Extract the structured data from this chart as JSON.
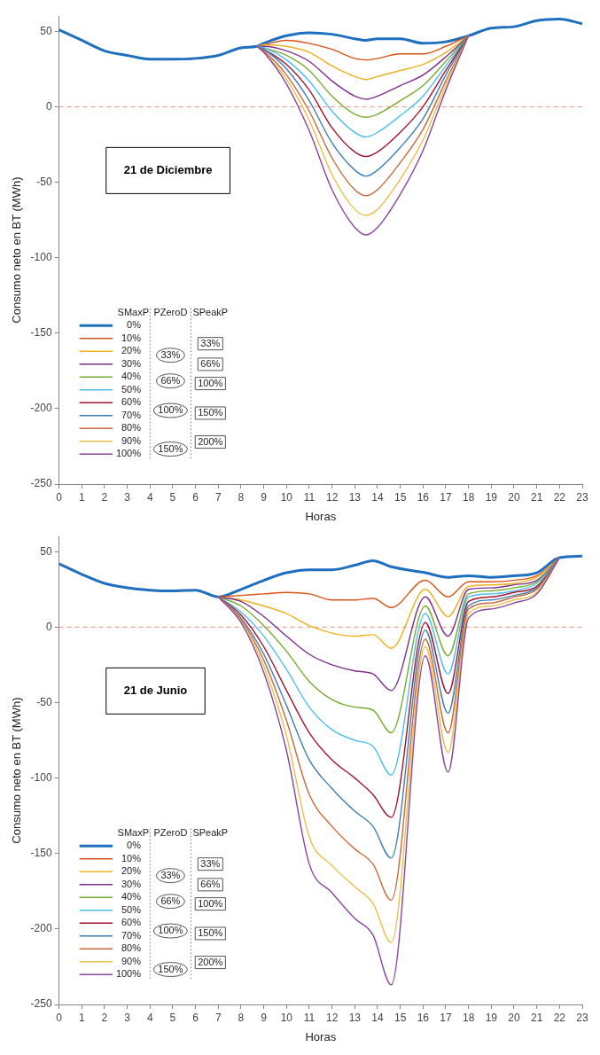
{
  "chart_data": [
    {
      "type": "line",
      "xlabel": "Horas",
      "ylabel": "Consumo neto en BT (MWh)",
      "legend": "bottom left",
      "legend_title": "SMaxP",
      "marker": "none",
      "annotations": [
        "21 de Diciembre",
        "PZeroD",
        "33%",
        "66%",
        "100%",
        "150%",
        "SPeakP",
        "33%",
        "66%",
        "100%",
        "150%",
        "200%"
      ],
      "ref_lines": [
        {
          "axis": "y",
          "value": 0,
          "color": "#e8907a",
          "line_style": "dashed"
        }
      ],
      "xlim": [
        0,
        23
      ],
      "xticks": [
        0,
        1,
        2,
        3,
        4,
        5,
        6,
        7,
        8,
        9,
        10,
        11,
        12,
        13,
        14,
        15,
        16,
        17,
        18,
        19,
        20,
        21,
        22,
        23
      ],
      "ylim": [
        -250,
        60
      ],
      "yticks": [
        -250,
        -200,
        -150,
        -100,
        -50,
        0,
        50
      ],
      "x": [
        0,
        1,
        2,
        3,
        4,
        5,
        6,
        7,
        8,
        8.7,
        9,
        10,
        11,
        12,
        13,
        13.5,
        14,
        15,
        16,
        17,
        18,
        19,
        20,
        21,
        22,
        23
      ],
      "series": [
        {
          "name": "0%",
          "color": "#1f6fbf",
          "values": [
            51,
            44,
            37,
            34,
            31.5,
            31.5,
            32,
            34,
            39,
            40,
            42,
            47,
            49,
            48,
            45,
            44,
            45,
            45,
            42,
            43,
            47,
            52,
            53,
            57,
            58,
            55
          ]
        },
        {
          "name": "10%",
          "color": "#d95319",
          "values": [
            null,
            null,
            null,
            null,
            null,
            null,
            null,
            null,
            null,
            40,
            41,
            44,
            42,
            38,
            32,
            31,
            32,
            35,
            35,
            40,
            47,
            null,
            null,
            null,
            null,
            null
          ]
        },
        {
          "name": "20%",
          "color": "#edb120",
          "values": [
            null,
            null,
            null,
            null,
            null,
            null,
            null,
            null,
            null,
            40,
            41,
            40,
            36,
            27,
            20,
            18,
            20,
            24,
            28,
            36,
            47,
            null,
            null,
            null,
            null,
            null
          ]
        },
        {
          "name": "30%",
          "color": "#7e2f8e",
          "values": [
            null,
            null,
            null,
            null,
            null,
            null,
            null,
            null,
            null,
            40,
            40,
            37,
            30,
            17,
            7,
            5,
            7,
            14,
            21,
            33,
            47,
            null,
            null,
            null,
            null,
            null
          ]
        },
        {
          "name": "40%",
          "color": "#77ac30",
          "values": [
            null,
            null,
            null,
            null,
            null,
            null,
            null,
            null,
            null,
            40,
            39,
            34,
            24,
            7,
            -5,
            -7,
            -5,
            4,
            14,
            30,
            47,
            null,
            null,
            null,
            null,
            null
          ]
        },
        {
          "name": "50%",
          "color": "#4dbeee",
          "values": [
            null,
            null,
            null,
            null,
            null,
            null,
            null,
            null,
            null,
            40,
            39,
            31,
            17,
            -3,
            -17,
            -20,
            -17,
            -6,
            7,
            27,
            47,
            null,
            null,
            null,
            null,
            null
          ]
        },
        {
          "name": "60%",
          "color": "#a2142f",
          "values": [
            null,
            null,
            null,
            null,
            null,
            null,
            null,
            null,
            null,
            40,
            38,
            28,
            11,
            -14,
            -30,
            -33,
            -30,
            -17,
            0,
            24,
            47,
            null,
            null,
            null,
            null,
            null
          ]
        },
        {
          "name": "70%",
          "color": "#3d7fb5",
          "values": [
            null,
            null,
            null,
            null,
            null,
            null,
            null,
            null,
            null,
            40,
            38,
            25,
            4,
            -24,
            -42,
            -46,
            -42,
            -27,
            -8,
            21,
            47,
            null,
            null,
            null,
            null,
            null
          ]
        },
        {
          "name": "80%",
          "color": "#c8693a",
          "values": [
            null,
            null,
            null,
            null,
            null,
            null,
            null,
            null,
            null,
            40,
            37,
            21,
            -3,
            -34,
            -55,
            -59,
            -55,
            -37,
            -15,
            17,
            47,
            null,
            null,
            null,
            null,
            null
          ]
        },
        {
          "name": "90%",
          "color": "#e8c04a",
          "values": [
            null,
            null,
            null,
            null,
            null,
            null,
            null,
            null,
            null,
            40,
            36,
            18,
            -9,
            -45,
            -68,
            -72,
            -68,
            -48,
            -22,
            14,
            47,
            null,
            null,
            null,
            null,
            null
          ]
        },
        {
          "name": "100%",
          "color": "#8a45a0",
          "values": [
            null,
            null,
            null,
            null,
            null,
            null,
            null,
            null,
            null,
            40,
            36,
            15,
            -16,
            -55,
            -80,
            -85,
            -80,
            -58,
            -29,
            11,
            47,
            null,
            null,
            null,
            null,
            null
          ]
        }
      ]
    },
    {
      "type": "line",
      "xlabel": "Horas",
      "ylabel": "Consumo neto en BT (MWh)",
      "legend": "bottom left",
      "legend_title": "SMaxP",
      "marker": "none",
      "annotations": [
        "21 de Junio",
        "PZeroD",
        "33%",
        "66%",
        "100%",
        "150%",
        "SPeakP",
        "33%",
        "66%",
        "100%",
        "150%",
        "200%"
      ],
      "ref_lines": [
        {
          "axis": "y",
          "value": 0,
          "color": "#e8907a",
          "line_style": "dashed"
        }
      ],
      "xlim": [
        0,
        23
      ],
      "xticks": [
        0,
        1,
        2,
        3,
        4,
        5,
        6,
        7,
        8,
        9,
        10,
        11,
        12,
        13,
        14,
        15,
        16,
        17,
        18,
        19,
        20,
        21,
        22,
        23
      ],
      "ylim": [
        -250,
        60
      ],
      "yticks": [
        -250,
        -200,
        -150,
        -100,
        -50,
        0,
        50
      ],
      "x": [
        0,
        1,
        2,
        3,
        4,
        5,
        6,
        7,
        8,
        9,
        10,
        11,
        12,
        13,
        13.8,
        14.6,
        16.1,
        17.1,
        18,
        19,
        20,
        21,
        22,
        23
      ],
      "series": [
        {
          "name": "0%",
          "color": "#1f6fbf",
          "values": [
            42,
            35,
            29,
            26,
            24.5,
            24,
            24.5,
            20,
            25,
            31,
            36,
            38,
            38,
            41,
            44,
            40,
            36,
            33,
            34,
            33,
            34,
            36,
            46,
            47
          ]
        },
        {
          "name": "10%",
          "color": "#d95319",
          "values": [
            null,
            null,
            null,
            null,
            null,
            null,
            null,
            20,
            21,
            22,
            23,
            22,
            18,
            18,
            19,
            13,
            31,
            20,
            30,
            30,
            31,
            34,
            46,
            null
          ]
        },
        {
          "name": "20%",
          "color": "#edb120",
          "values": [
            null,
            null,
            null,
            null,
            null,
            null,
            null,
            20,
            18,
            14,
            9,
            1,
            -4,
            -6,
            -5,
            -14,
            25,
            7,
            27,
            28,
            29,
            33,
            46,
            null
          ]
        },
        {
          "name": "30%",
          "color": "#7e2f8e",
          "values": [
            null,
            null,
            null,
            null,
            null,
            null,
            null,
            20,
            17,
            7,
            -6,
            -18,
            -25,
            -29,
            -31,
            -42,
            20,
            -6,
            25,
            26,
            28,
            31,
            46,
            null
          ]
        },
        {
          "name": "40%",
          "color": "#77ac30",
          "values": [
            null,
            null,
            null,
            null,
            null,
            null,
            null,
            20,
            14,
            1,
            -16,
            -36,
            -48,
            -53,
            -55,
            -70,
            14,
            -19,
            22,
            24,
            26,
            30,
            46,
            null
          ]
        },
        {
          "name": "50%",
          "color": "#4dbeee",
          "values": [
            null,
            null,
            null,
            null,
            null,
            null,
            null,
            20,
            10,
            -6,
            -28,
            -53,
            -68,
            -75,
            -79,
            -98,
            9,
            -31,
            20,
            22,
            24,
            29,
            46,
            null
          ]
        },
        {
          "name": "60%",
          "color": "#a2142f",
          "values": [
            null,
            null,
            null,
            null,
            null,
            null,
            null,
            20,
            8,
            -13,
            -42,
            -70,
            -88,
            -100,
            -111,
            -126,
            3,
            -44,
            17,
            20,
            23,
            27,
            46,
            null
          ]
        },
        {
          "name": "70%",
          "color": "#3d7fb5",
          "values": [
            null,
            null,
            null,
            null,
            null,
            null,
            null,
            20,
            6,
            -18,
            -52,
            -88,
            -107,
            -122,
            -132,
            -153,
            -2,
            -57,
            14,
            18,
            21,
            26,
            46,
            null
          ]
        },
        {
          "name": "80%",
          "color": "#c8693a",
          "values": [
            null,
            null,
            null,
            null,
            null,
            null,
            null,
            20,
            5,
            -22,
            -62,
            -111,
            -132,
            -147,
            -157,
            -181,
            -8,
            -70,
            12,
            16,
            20,
            25,
            46,
            null
          ]
        },
        {
          "name": "90%",
          "color": "#e8c04a",
          "values": [
            null,
            null,
            null,
            null,
            null,
            null,
            null,
            20,
            4,
            -26,
            -72,
            -139,
            -158,
            -172,
            -183,
            -209,
            -13,
            -83,
            9,
            14,
            18,
            23,
            46,
            null
          ]
        },
        {
          "name": "100%",
          "color": "#8a45a0",
          "values": [
            null,
            null,
            null,
            null,
            null,
            null,
            null,
            20,
            3,
            -30,
            -82,
            -157,
            -176,
            -193,
            -204,
            -237,
            -19,
            -96,
            6,
            12,
            16,
            22,
            46,
            null
          ]
        }
      ]
    }
  ]
}
